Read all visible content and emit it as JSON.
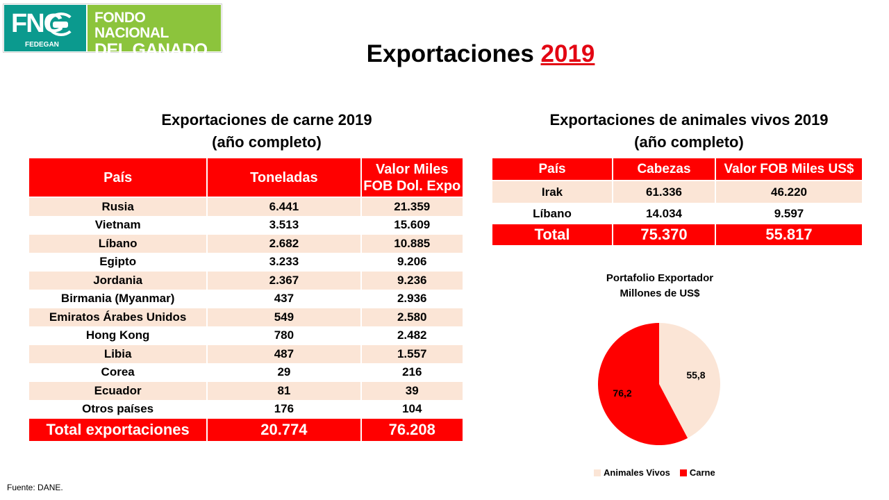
{
  "logo": {
    "acronym": "FNG",
    "sub": "FEDEGAN",
    "line1": "FONDO NACIONAL",
    "line2": "DEL GANADO",
    "colors": {
      "teal": "#0b9a8e",
      "green": "#8cc43c"
    }
  },
  "title": {
    "text": "Exportaciones",
    "year": "2019"
  },
  "carne": {
    "title_line1": "Exportaciones de carne 2019",
    "title_line2": "(año completo)",
    "headers": [
      "País",
      "Toneladas",
      "Valor Miles FOB Dol. Expo"
    ],
    "rows": [
      [
        "Rusia",
        "6.441",
        "21.359"
      ],
      [
        "Vietnam",
        "3.513",
        "15.609"
      ],
      [
        "Líbano",
        "2.682",
        "10.885"
      ],
      [
        "Egipto",
        "3.233",
        "9.206"
      ],
      [
        "Jordania",
        "2.367",
        "9.236"
      ],
      [
        "Birmania (Myanmar)",
        "437",
        "2.936"
      ],
      [
        "Emiratos Árabes Unidos",
        "549",
        "2.580"
      ],
      [
        "Hong Kong",
        "780",
        "2.482"
      ],
      [
        "Libia",
        "487",
        "1.557"
      ],
      [
        "Corea",
        "29",
        "216"
      ],
      [
        "Ecuador",
        "81",
        "39"
      ],
      [
        "Otros países",
        "176",
        "104"
      ]
    ],
    "total": [
      "Total exportaciones",
      "20.774",
      "76.208"
    ]
  },
  "vivos": {
    "title_line1": "Exportaciones de animales vivos 2019",
    "title_line2": "(año completo)",
    "headers": [
      "País",
      "Cabezas",
      "Valor FOB Miles US$"
    ],
    "rows": [
      [
        "Irak",
        "61.336",
        "46.220"
      ],
      [
        "Líbano",
        "14.034",
        "9.597"
      ]
    ],
    "total": [
      "Total",
      "75.370",
      "55.817"
    ]
  },
  "chart_data": {
    "type": "pie",
    "title": "Portafolio Exportador",
    "subtitle": "Millones de US$",
    "slices": [
      {
        "label": "Animales Vivos",
        "value": 55.8,
        "display": "55,8",
        "color": "#fbe5d6"
      },
      {
        "label": "Carne",
        "value": 76.2,
        "display": "76,2",
        "color": "#ff0000"
      }
    ],
    "legend": "bottom"
  },
  "source": "Fuente: DANE.",
  "colors": {
    "accent": "#ff0000",
    "row_alt": "#fbe5d6",
    "year": "#e30613"
  }
}
